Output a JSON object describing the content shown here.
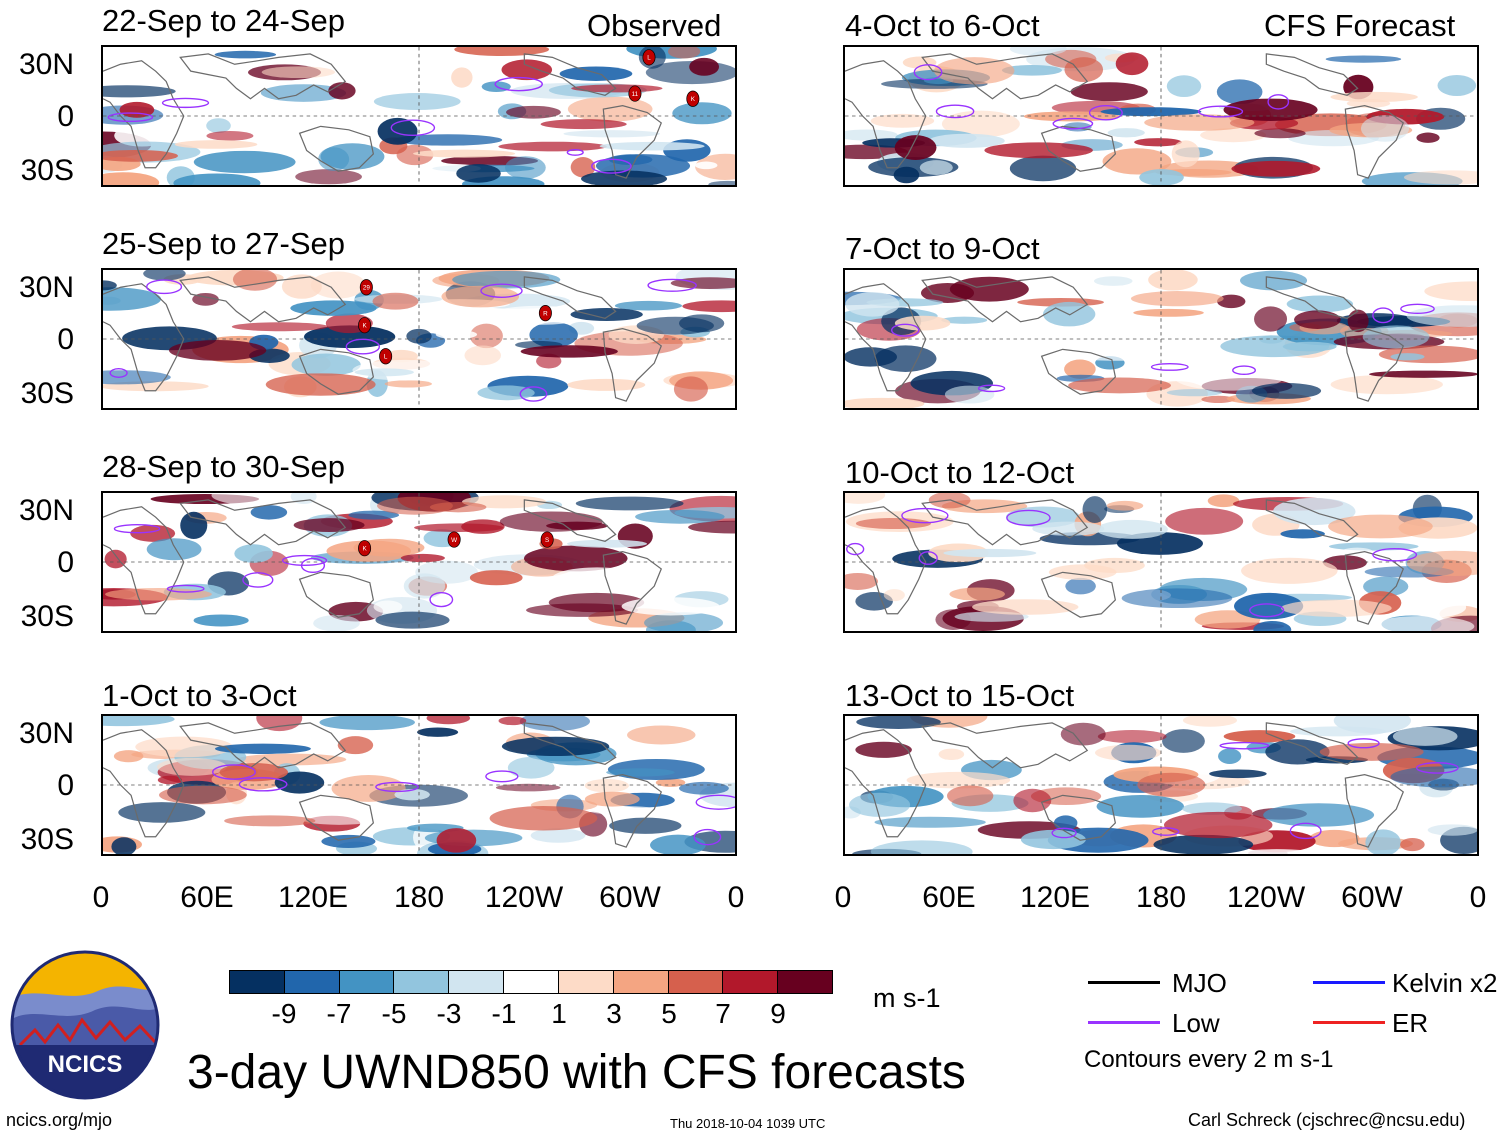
{
  "chart_data": {
    "type": "heatmap",
    "title": "3-day UWND850 with CFS forecasts",
    "variable": "850-hPa zonal wind anomaly",
    "units": "m s-1",
    "contour_note": "Contours every 2 m s-1",
    "observed_label": "Observed",
    "forecast_label": "CFS Forecast",
    "lat_ticks": [
      "30N",
      "0",
      "30S"
    ],
    "lon_ticks": [
      "0",
      "60E",
      "120E",
      "180",
      "120W",
      "60W",
      "0"
    ],
    "lon_range": [
      0,
      360
    ],
    "lat_range": [
      -40,
      40
    ],
    "colorbar": {
      "ticks": [
        "-9",
        "-7",
        "-5",
        "-3",
        "-1",
        "1",
        "3",
        "5",
        "7",
        "9"
      ],
      "colors": [
        "#053061",
        "#2166ac",
        "#4393c3",
        "#92c5de",
        "#d1e5f0",
        "#ffffff",
        "#fddbc7",
        "#f4a582",
        "#d6604d",
        "#b2182b",
        "#67001f"
      ]
    },
    "legend": [
      {
        "label": "MJO",
        "color": "#000000"
      },
      {
        "label": "Kelvin x2",
        "color": "#1a1aff"
      },
      {
        "label": "Low",
        "color": "#9933ff"
      },
      {
        "label": "ER",
        "color": "#ee2222"
      }
    ],
    "panels": [
      {
        "period": "22-Sep to 24-Sep",
        "column": "observed",
        "storms": [
          "L",
          "11",
          "K"
        ]
      },
      {
        "period": "25-Sep to 27-Sep",
        "column": "observed",
        "storms": [
          "29",
          "R",
          "K",
          "L"
        ]
      },
      {
        "period": "28-Sep to 30-Sep",
        "column": "observed",
        "storms": [
          "K",
          "W",
          "S"
        ]
      },
      {
        "period": "1-Oct to 3-Oct",
        "column": "observed",
        "storms": []
      },
      {
        "period": "4-Oct to 6-Oct",
        "column": "forecast",
        "storms": []
      },
      {
        "period": "7-Oct to 9-Oct",
        "column": "forecast",
        "storms": []
      },
      {
        "period": "10-Oct to 12-Oct",
        "column": "forecast",
        "storms": []
      },
      {
        "period": "13-Oct to 15-Oct",
        "column": "forecast",
        "storms": []
      }
    ]
  },
  "branding": {
    "logo_text": "NCICS",
    "website": "ncics.org/mjo",
    "timestamp": "Thu 2018-10-04 1039 UTC",
    "author": "Carl Schreck (cjschrec@ncsu.edu)"
  }
}
